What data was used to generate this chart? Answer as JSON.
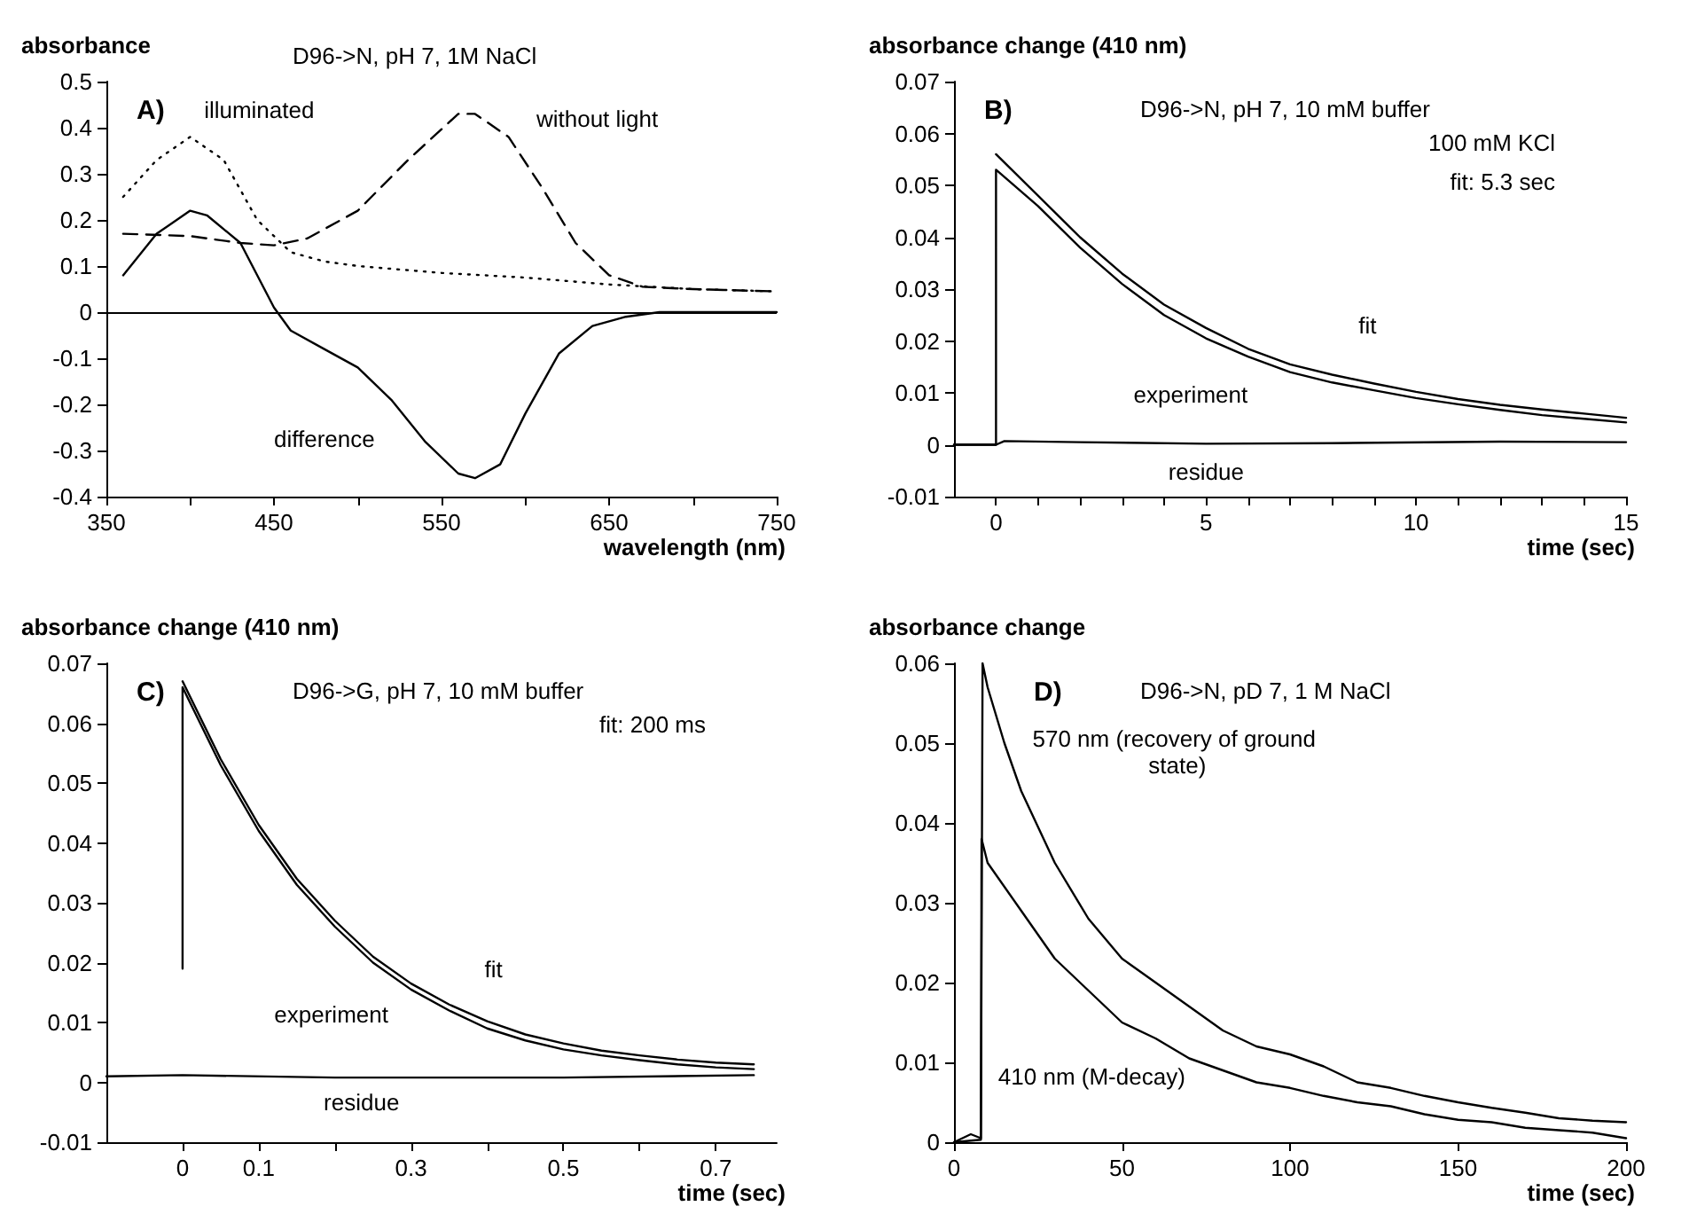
{
  "chart_data": [
    {
      "type": "line",
      "title": "A)",
      "subtitle": "D96->N, pH 7, 1M NaCl",
      "xlabel": "wavelength (nm)",
      "ylabel": "absorbance",
      "xlim": [
        350,
        750
      ],
      "xticks": [
        350,
        {
          "value": 400,
          "label": null
        },
        450,
        {
          "value": 500,
          "label": null
        },
        550,
        {
          "value": 600,
          "label": null
        },
        650,
        {
          "value": 700,
          "label": null
        },
        750
      ],
      "ylim": [
        -0.4,
        0.5
      ],
      "yticks": [
        -0.4,
        -0.3,
        -0.2,
        -0.1,
        0,
        0.1,
        0.2,
        0.3,
        0.4,
        0.5
      ],
      "ref_lines": [
        {
          "axis": "y",
          "value": 0,
          "color": "#000000",
          "line_style": "solid"
        }
      ],
      "series": [
        {
          "name": "illuminated",
          "color": "#000000",
          "line_style": "dotted",
          "x": [
            360,
            380,
            400,
            420,
            440,
            460,
            480,
            500,
            550,
            600,
            650,
            700,
            750
          ],
          "values": [
            0.25,
            0.33,
            0.38,
            0.33,
            0.2,
            0.13,
            0.11,
            0.1,
            0.085,
            0.075,
            0.06,
            0.05,
            0.045
          ]
        },
        {
          "name": "without light",
          "color": "#000000",
          "line_style": "dashed",
          "x": [
            360,
            400,
            430,
            450,
            470,
            500,
            530,
            560,
            570,
            590,
            610,
            630,
            650,
            670,
            700,
            750
          ],
          "values": [
            0.17,
            0.165,
            0.15,
            0.145,
            0.16,
            0.22,
            0.33,
            0.43,
            0.43,
            0.38,
            0.27,
            0.15,
            0.08,
            0.055,
            0.05,
            0.045
          ]
        },
        {
          "name": "difference",
          "color": "#000000",
          "line_style": "solid",
          "x": [
            360,
            380,
            400,
            410,
            430,
            450,
            460,
            480,
            500,
            520,
            540,
            560,
            570,
            585,
            600,
            620,
            640,
            660,
            680,
            750
          ],
          "values": [
            0.08,
            0.17,
            0.22,
            0.21,
            0.15,
            0.01,
            -0.04,
            -0.08,
            -0.12,
            -0.19,
            -0.28,
            -0.35,
            -0.36,
            -0.33,
            -0.22,
            -0.09,
            -0.03,
            -0.01,
            0,
            0
          ]
        }
      ]
    },
    {
      "type": "line",
      "title": "B)",
      "subtitle": "D96->N, pH 7, 10 mM buffer",
      "xlabel": "time (sec)",
      "ylabel": "absorbance change (410 nm)",
      "xlim": [
        -1,
        15
      ],
      "xticks": [
        0,
        {
          "value": 1,
          "label": null
        },
        {
          "value": 2,
          "label": null
        },
        {
          "value": 3,
          "label": null
        },
        {
          "value": 4,
          "label": null
        },
        5,
        {
          "value": 6,
          "label": null
        },
        {
          "value": 7,
          "label": null
        },
        {
          "value": 8,
          "label": null
        },
        {
          "value": 9,
          "label": null
        },
        10,
        {
          "value": 11,
          "label": null
        },
        {
          "value": 12,
          "label": null
        },
        {
          "value": 13,
          "label": null
        },
        {
          "value": 14,
          "label": null
        },
        15
      ],
      "ylim": [
        -0.01,
        0.07
      ],
      "yticks": [
        -0.01,
        0,
        0.01,
        0.02,
        0.03,
        0.04,
        0.05,
        0.06,
        0.07
      ],
      "series": [
        {
          "name": "experiment",
          "color": "#000000",
          "line_style": "solid",
          "x": [
            -1,
            0,
            0,
            1,
            2,
            3,
            4,
            5,
            6,
            7,
            8,
            9,
            10,
            11,
            12,
            13,
            14,
            15
          ],
          "values": [
            0,
            0,
            0.053,
            0.046,
            0.038,
            0.031,
            0.025,
            0.0205,
            0.017,
            0.014,
            0.012,
            0.0105,
            0.009,
            0.0078,
            0.0067,
            0.0057,
            0.005,
            0.0043
          ]
        },
        {
          "name": "fit",
          "color": "#000000",
          "line_style": "solid",
          "x": [
            0,
            1,
            2,
            3,
            4,
            5,
            6,
            7,
            8,
            9,
            10,
            11,
            12,
            13,
            14,
            15
          ],
          "values": [
            0.056,
            0.048,
            0.04,
            0.033,
            0.027,
            0.0225,
            0.0185,
            0.0155,
            0.0135,
            0.0118,
            0.0102,
            0.0088,
            0.0077,
            0.0068,
            0.006,
            0.0052
          ]
        },
        {
          "name": "residue",
          "color": "#000000",
          "line_style": "solid",
          "x": [
            -1,
            0,
            0.2,
            2,
            5,
            8,
            12,
            15
          ],
          "values": [
            0,
            0,
            0.0007,
            0.0005,
            0.0002,
            0.0003,
            0.0006,
            0.0005
          ]
        }
      ],
      "annotations": [
        "100 mM KCl",
        "fit: 5.3 sec"
      ]
    },
    {
      "type": "line",
      "title": "C)",
      "subtitle": "D96->G, pH 7, 10 mM buffer",
      "xlabel": "time (sec)",
      "ylabel": "absorbance change (410 nm)",
      "xlim": [
        -0.1,
        0.78
      ],
      "xticks": [
        0,
        0.1,
        {
          "value": 0.2,
          "label": null
        },
        0.3,
        {
          "value": 0.4,
          "label": null
        },
        0.5,
        {
          "value": 0.6,
          "label": null
        },
        0.7
      ],
      "ylim": [
        -0.01,
        0.07
      ],
      "yticks": [
        -0.01,
        0,
        0.01,
        0.02,
        0.03,
        0.04,
        0.05,
        0.06,
        0.07
      ],
      "series": [
        {
          "name": "experiment",
          "color": "#000000",
          "line_style": "solid",
          "x": [
            0,
            0,
            0.05,
            0.1,
            0.15,
            0.2,
            0.25,
            0.3,
            0.35,
            0.4,
            0.45,
            0.5,
            0.55,
            0.6,
            0.65,
            0.7,
            0.75
          ],
          "values": [
            0.019,
            0.066,
            0.053,
            0.042,
            0.033,
            0.026,
            0.02,
            0.0155,
            0.012,
            0.009,
            0.007,
            0.0055,
            0.0045,
            0.0037,
            0.003,
            0.0025,
            0.0022
          ]
        },
        {
          "name": "fit",
          "color": "#000000",
          "line_style": "solid",
          "x": [
            0,
            0.05,
            0.1,
            0.15,
            0.2,
            0.25,
            0.3,
            0.35,
            0.4,
            0.45,
            0.5,
            0.55,
            0.6,
            0.65,
            0.7,
            0.75
          ],
          "values": [
            0.067,
            0.054,
            0.043,
            0.034,
            0.027,
            0.021,
            0.0165,
            0.013,
            0.0102,
            0.008,
            0.0065,
            0.0053,
            0.0045,
            0.0038,
            0.0033,
            0.003
          ]
        },
        {
          "name": "residue",
          "color": "#000000",
          "line_style": "solid",
          "x": [
            -0.1,
            0,
            0.2,
            0.5,
            0.75
          ],
          "values": [
            0.001,
            0.0012,
            0.0008,
            0.0008,
            0.0012
          ]
        }
      ],
      "annotations": [
        "fit: 200 ms"
      ]
    },
    {
      "type": "line",
      "title": "D)",
      "subtitle": "D96->N, pD 7, 1 M NaCl",
      "xlabel": "time (sec)",
      "ylabel": "absorbance change",
      "xlim": [
        0,
        200
      ],
      "xticks": [
        0,
        50,
        100,
        150,
        200
      ],
      "ylim": [
        0,
        0.06
      ],
      "yticks": [
        0,
        0.01,
        0.02,
        0.03,
        0.04,
        0.05,
        0.06
      ],
      "series": [
        {
          "name": "570 nm (recovery of ground state)",
          "color": "#000000",
          "line_style": "solid",
          "x": [
            0,
            5,
            8,
            8.5,
            10,
            15,
            20,
            30,
            40,
            50,
            60,
            70,
            80,
            90,
            100,
            110,
            120,
            130,
            140,
            150,
            160,
            170,
            180,
            190,
            200
          ],
          "values": [
            0,
            0.001,
            0.0005,
            0.06,
            0.057,
            0.05,
            0.044,
            0.035,
            0.028,
            0.023,
            0.02,
            0.017,
            0.014,
            0.012,
            0.011,
            0.0095,
            0.0075,
            0.0068,
            0.0058,
            0.005,
            0.0043,
            0.0037,
            0.003,
            0.0027,
            0.0025
          ]
        },
        {
          "name": "410 nm (M-decay)",
          "color": "#000000",
          "line_style": "solid",
          "x": [
            0,
            8,
            8.2,
            10,
            20,
            30,
            40,
            50,
            60,
            70,
            80,
            90,
            100,
            110,
            120,
            130,
            140,
            150,
            160,
            170,
            180,
            190,
            200
          ],
          "values": [
            0,
            0.0003,
            0.038,
            0.035,
            0.029,
            0.023,
            0.019,
            0.015,
            0.013,
            0.0105,
            0.009,
            0.0075,
            0.0068,
            0.0058,
            0.005,
            0.0045,
            0.0035,
            0.0028,
            0.0025,
            0.0018,
            0.0015,
            0.0012,
            0.0005
          ]
        }
      ]
    }
  ]
}
